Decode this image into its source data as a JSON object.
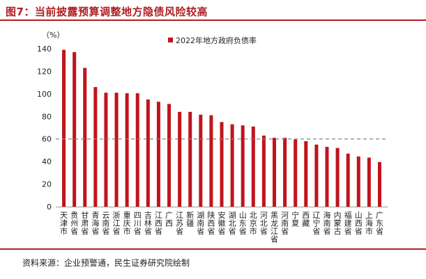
{
  "figure_title": "图7：当前披露预算调整地方隐债风险较高",
  "source_note": "资料来源：企业预警通，民生证券研究院绘制",
  "chart_data": {
    "type": "bar",
    "unit_label": "（%）",
    "series_name": "2022年地方政府负债率",
    "bar_color": "#c0141c",
    "reference_line": {
      "value": 60,
      "color": "#888888",
      "style": "dashed"
    },
    "ylim": [
      0,
      140
    ],
    "yticks": [
      0,
      20,
      40,
      60,
      80,
      100,
      120,
      140
    ],
    "legend_position": "top-center",
    "categories": [
      "天津市",
      "贵州省",
      "甘肃省",
      "青海省",
      "云南省",
      "浙江省",
      "重庆市",
      "四川省",
      "吉林省",
      "江西省",
      "广西",
      "江苏省",
      "新疆",
      "湖南省",
      "陕西省",
      "安徽省",
      "湖北省",
      "山东省",
      "北京市",
      "河北省",
      "黑龙江省",
      "河南省",
      "宁夏",
      "西藏",
      "辽宁省",
      "海南省",
      "内蒙古",
      "福建省",
      "山西省",
      "上海市",
      "广东省"
    ],
    "values": [
      139,
      137,
      123,
      106,
      101,
      101,
      100.5,
      100.5,
      95,
      93,
      91,
      84,
      84,
      81.5,
      81,
      75,
      73,
      72,
      71,
      63,
      61,
      61,
      59.5,
      58,
      55,
      53,
      52,
      47,
      44.5,
      43.5,
      39.5
    ]
  }
}
